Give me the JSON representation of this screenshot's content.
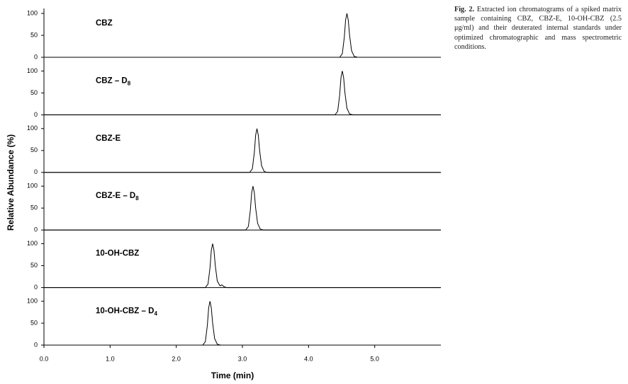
{
  "axes": {
    "xlabel": "Time (min)",
    "ylabel": "Relative Abundance (%)",
    "xlim": [
      0,
      6
    ],
    "xticks": [
      {
        "value": 0,
        "label": "0.0"
      },
      {
        "value": 1,
        "label": "1.0"
      },
      {
        "value": 2,
        "label": "2.0"
      },
      {
        "value": 3,
        "label": "3.0"
      },
      {
        "value": 4,
        "label": "4.0"
      },
      {
        "value": 5,
        "label": "5.0"
      }
    ]
  },
  "caption_label": "Fig. 2.",
  "caption_text": "Extracted ion chromatograms of a spiked matrix sample containing CBZ, CBZ-E, 10-OH-CBZ (2.5 μg/ml) and their deuterated internal standards under optimized chromatographic and mass spectrometric conditions.",
  "chart_data": [
    {
      "type": "line",
      "label": "CBZ",
      "ylim": [
        0,
        100
      ],
      "yticks": [
        0,
        50,
        100
      ],
      "x": [
        0,
        4.47,
        4.51,
        4.54,
        4.56,
        4.58,
        4.6,
        4.62,
        4.65,
        4.69,
        4.74,
        6
      ],
      "values": [
        0,
        0,
        8,
        45,
        85,
        100,
        85,
        50,
        15,
        2,
        0,
        0
      ]
    },
    {
      "type": "line",
      "label": "CBZ – D",
      "label_subscript": "8",
      "ylim": [
        0,
        100
      ],
      "yticks": [
        0,
        50,
        100
      ],
      "x": [
        0,
        4.4,
        4.44,
        4.47,
        4.49,
        4.51,
        4.53,
        4.55,
        4.58,
        4.62,
        4.67,
        6
      ],
      "values": [
        0,
        0,
        8,
        45,
        85,
        100,
        85,
        50,
        15,
        2,
        0,
        0
      ]
    },
    {
      "type": "line",
      "label": "CBZ-E",
      "ylim": [
        0,
        100
      ],
      "yticks": [
        0,
        50,
        100
      ],
      "x": [
        0,
        3.11,
        3.15,
        3.18,
        3.2,
        3.22,
        3.24,
        3.26,
        3.29,
        3.33,
        3.38,
        6
      ],
      "values": [
        0,
        0,
        8,
        45,
        85,
        100,
        85,
        50,
        15,
        2,
        0,
        0
      ]
    },
    {
      "type": "line",
      "label": "CBZ-E – D",
      "label_subscript": "8",
      "ylim": [
        0,
        100
      ],
      "yticks": [
        0,
        50,
        100
      ],
      "x": [
        0,
        3.05,
        3.09,
        3.12,
        3.14,
        3.16,
        3.18,
        3.2,
        3.23,
        3.27,
        3.32,
        6
      ],
      "values": [
        0,
        0,
        8,
        45,
        85,
        100,
        85,
        50,
        15,
        2,
        0,
        0
      ]
    },
    {
      "type": "line",
      "label": "10-OH-CBZ",
      "ylim": [
        0,
        100
      ],
      "yticks": [
        0,
        50,
        100
      ],
      "x": [
        0,
        2.44,
        2.48,
        2.51,
        2.53,
        2.55,
        2.57,
        2.59,
        2.62,
        2.66,
        2.69,
        2.72,
        2.76,
        6
      ],
      "values": [
        0,
        0,
        8,
        45,
        85,
        100,
        85,
        50,
        15,
        4,
        6,
        2,
        0,
        0
      ]
    },
    {
      "type": "line",
      "label": "10-OH-CBZ – D",
      "label_subscript": "4",
      "ylim": [
        0,
        100
      ],
      "yticks": [
        0,
        50,
        100
      ],
      "x": [
        0,
        2.4,
        2.44,
        2.47,
        2.49,
        2.51,
        2.53,
        2.55,
        2.58,
        2.62,
        2.67,
        6
      ],
      "values": [
        0,
        0,
        8,
        45,
        85,
        100,
        85,
        50,
        15,
        2,
        0,
        0
      ]
    }
  ]
}
